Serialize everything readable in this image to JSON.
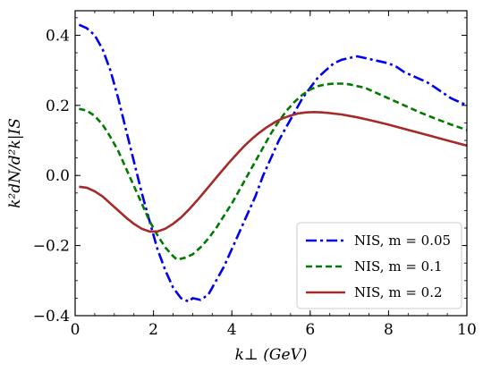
{
  "chart_data": {
    "type": "line",
    "xlabel": "k⊥ (GeV)",
    "ylabel": "k²dN/d²k|IS",
    "xlim": [
      0,
      10
    ],
    "ylim": [
      -0.4,
      0.47
    ],
    "grid": false,
    "legend_position": "bottom-right",
    "x_ticks": [
      0,
      2,
      4,
      6,
      8,
      10
    ],
    "x_tick_labels": [
      "0",
      "2",
      "4",
      "6",
      "8",
      "10"
    ],
    "y_ticks": [
      -0.4,
      -0.2,
      0.0,
      0.2,
      0.4
    ],
    "y_tick_labels": [
      "−0.4",
      "−0.2",
      "0.0",
      "0.2",
      "0.4"
    ],
    "series": [
      {
        "name": "N_IS, m = 0.05",
        "legend_label": "NIS, m = 0.05",
        "color": "#0000ee",
        "style": "dashdot",
        "x": [
          0.1,
          0.3,
          0.5,
          0.7,
          0.9,
          1.1,
          1.3,
          1.5,
          1.7,
          1.9,
          2.1,
          2.3,
          2.5,
          2.7,
          2.9,
          3.0,
          3.2,
          3.4,
          3.6,
          3.8,
          4.0,
          4.2,
          4.4,
          4.6,
          4.8,
          5.0,
          5.2,
          5.4,
          5.6,
          5.8,
          6.0,
          6.2,
          6.4,
          6.6,
          6.8,
          7.0,
          7.2,
          7.4,
          7.6,
          7.8,
          8.0,
          8.2,
          8.4,
          8.6,
          8.8,
          9.0,
          9.2,
          9.4,
          9.6,
          9.8,
          10.0
        ],
        "y": [
          0.43,
          0.42,
          0.4,
          0.36,
          0.3,
          0.22,
          0.13,
          0.04,
          -0.05,
          -0.13,
          -0.21,
          -0.27,
          -0.32,
          -0.35,
          -0.36,
          -0.35,
          -0.355,
          -0.34,
          -0.3,
          -0.26,
          -0.21,
          -0.16,
          -0.11,
          -0.06,
          0.0,
          0.05,
          0.1,
          0.14,
          0.18,
          0.22,
          0.25,
          0.28,
          0.3,
          0.32,
          0.33,
          0.335,
          0.34,
          0.335,
          0.33,
          0.325,
          0.32,
          0.31,
          0.295,
          0.285,
          0.275,
          0.265,
          0.25,
          0.235,
          0.22,
          0.21,
          0.2
        ]
      },
      {
        "name": "N_IS, m = 0.1",
        "legend_label": "NIS, m = 0.1",
        "color": "#007a00",
        "style": "dashed",
        "x": [
          0.1,
          0.3,
          0.5,
          0.7,
          0.9,
          1.1,
          1.3,
          1.5,
          1.7,
          1.9,
          2.1,
          2.3,
          2.5,
          2.6,
          2.8,
          3.0,
          3.2,
          3.4,
          3.6,
          3.8,
          4.0,
          4.2,
          4.4,
          4.6,
          4.8,
          5.0,
          5.2,
          5.4,
          5.6,
          5.8,
          6.0,
          6.2,
          6.4,
          6.6,
          6.8,
          7.0,
          7.2,
          7.4,
          7.6,
          7.8,
          8.0,
          8.4,
          8.8,
          9.2,
          9.6,
          10.0
        ],
        "y": [
          0.19,
          0.185,
          0.17,
          0.145,
          0.11,
          0.07,
          0.02,
          -0.03,
          -0.08,
          -0.13,
          -0.17,
          -0.205,
          -0.23,
          -0.24,
          -0.235,
          -0.225,
          -0.205,
          -0.18,
          -0.15,
          -0.115,
          -0.08,
          -0.04,
          0.0,
          0.04,
          0.08,
          0.12,
          0.155,
          0.185,
          0.21,
          0.23,
          0.245,
          0.255,
          0.26,
          0.262,
          0.262,
          0.26,
          0.255,
          0.25,
          0.24,
          0.23,
          0.22,
          0.2,
          0.18,
          0.162,
          0.145,
          0.13
        ]
      },
      {
        "name": "N_IS, m = 0.2",
        "legend_label": "NIS, m = 0.2",
        "color": "#a52a2a",
        "style": "solid",
        "x": [
          0.1,
          0.3,
          0.5,
          0.7,
          0.9,
          1.1,
          1.3,
          1.5,
          1.7,
          1.9,
          2.1,
          2.3,
          2.5,
          2.7,
          2.9,
          3.1,
          3.3,
          3.5,
          3.7,
          3.9,
          4.1,
          4.3,
          4.5,
          4.7,
          4.9,
          5.1,
          5.3,
          5.5,
          5.7,
          5.9,
          6.1,
          6.3,
          6.5,
          6.8,
          7.2,
          7.6,
          8.0,
          8.4,
          8.8,
          9.2,
          9.6,
          10.0
        ],
        "y": [
          -0.032,
          -0.035,
          -0.045,
          -0.06,
          -0.08,
          -0.1,
          -0.12,
          -0.138,
          -0.152,
          -0.16,
          -0.16,
          -0.152,
          -0.138,
          -0.12,
          -0.098,
          -0.073,
          -0.047,
          -0.02,
          0.007,
          0.033,
          0.058,
          0.082,
          0.103,
          0.122,
          0.138,
          0.152,
          0.163,
          0.171,
          0.177,
          0.18,
          0.181,
          0.18,
          0.178,
          0.174,
          0.166,
          0.156,
          0.145,
          0.133,
          0.121,
          0.109,
          0.097,
          0.085
        ]
      }
    ]
  }
}
